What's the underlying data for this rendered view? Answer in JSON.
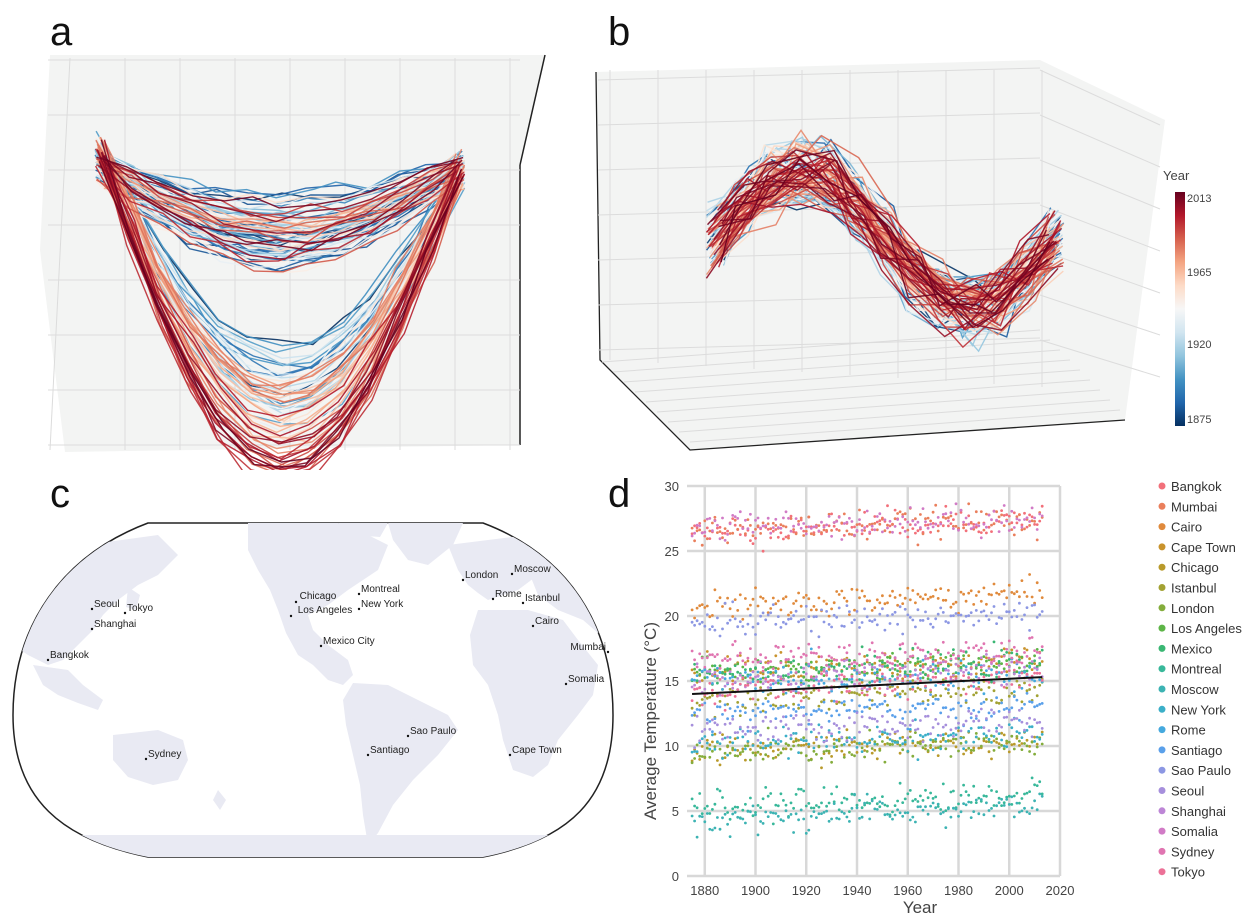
{
  "panels": {
    "a": {
      "letter": "a"
    },
    "b": {
      "letter": "b"
    },
    "c": {
      "letter": "c"
    },
    "d": {
      "letter": "d"
    }
  },
  "colorbar": {
    "title": "Year",
    "ticks": [
      "2013",
      "1965",
      "1920",
      "1875"
    ],
    "colors": [
      "#67001f",
      "#b2182b",
      "#d6604d",
      "#f4a582",
      "#fddbc7",
      "#f7f7f7",
      "#d1e5f0",
      "#92c5de",
      "#4393c3",
      "#2166ac",
      "#053061"
    ]
  },
  "map": {
    "land_color": "#e9eaf3",
    "ocean_color": "#ffffff",
    "cities": [
      {
        "name": "Seoul"
      },
      {
        "name": "Tokyo"
      },
      {
        "name": "Shanghai"
      },
      {
        "name": "Bangkok"
      },
      {
        "name": "Sydney"
      },
      {
        "name": "Chicago"
      },
      {
        "name": "Los Angeles"
      },
      {
        "name": "Montreal"
      },
      {
        "name": "New York"
      },
      {
        "name": "Mexico City"
      },
      {
        "name": "London"
      },
      {
        "name": "Moscow"
      },
      {
        "name": "Rome"
      },
      {
        "name": "Istanbul"
      },
      {
        "name": "Cairo"
      },
      {
        "name": "Mumbai"
      },
      {
        "name": "Somalia"
      },
      {
        "name": "Sao Paulo"
      },
      {
        "name": "Santiago"
      },
      {
        "name": "Cape Town"
      }
    ]
  },
  "chart_data": {
    "type": "scatter",
    "xlabel": "Year",
    "ylabel": "Average Temperature (°C)",
    "xlim": [
      1873,
      2020
    ],
    "ylim": [
      0,
      30
    ],
    "xticks": [
      1880,
      1900,
      1920,
      1940,
      1960,
      1980,
      2000,
      2020
    ],
    "yticks": [
      0,
      5,
      10,
      15,
      20,
      25,
      30
    ],
    "grid": true,
    "legend_position": "right",
    "x_range_of_series": [
      1875,
      2013
    ],
    "series": [
      {
        "name": "Bangkok",
        "color": "#f2707a",
        "mean": 27.0,
        "trend": 0.008
      },
      {
        "name": "Mumbai",
        "color": "#ea7f5c",
        "mean": 27.0,
        "trend": 0.007
      },
      {
        "name": "Cairo",
        "color": "#e08a3c",
        "mean": 21.2,
        "trend": 0.009
      },
      {
        "name": "Cape Town",
        "color": "#c9932d",
        "mean": 16.2,
        "trend": 0.004
      },
      {
        "name": "Chicago",
        "color": "#b99a2b",
        "mean": 10.0,
        "trend": 0.006
      },
      {
        "name": "Istanbul",
        "color": "#a3a233",
        "mean": 14.0,
        "trend": 0.005
      },
      {
        "name": "London",
        "color": "#84ad3c",
        "mean": 9.8,
        "trend": 0.006
      },
      {
        "name": "Los Angeles",
        "color": "#5db547",
        "mean": 16.0,
        "trend": 0.006
      },
      {
        "name": "Mexico",
        "color": "#3ab773",
        "mean": 16.0,
        "trend": 0.005
      },
      {
        "name": "Montreal",
        "color": "#38b89a",
        "mean": 5.8,
        "trend": 0.007
      },
      {
        "name": "Moscow",
        "color": "#3cb3b3",
        "mean": 4.8,
        "trend": 0.008
      },
      {
        "name": "New York",
        "color": "#3bafc8",
        "mean": 10.5,
        "trend": 0.006
      },
      {
        "name": "Rome",
        "color": "#45a9de",
        "mean": 15.2,
        "trend": 0.004
      },
      {
        "name": "Santiago",
        "color": "#5aa0ea",
        "mean": 12.8,
        "trend": 0.003
      },
      {
        "name": "Sao Paulo",
        "color": "#8c97e3",
        "mean": 19.8,
        "trend": 0.004
      },
      {
        "name": "Seoul",
        "color": "#a68fdc",
        "mean": 11.5,
        "trend": 0.007
      },
      {
        "name": "Shanghai",
        "color": "#bd86d6",
        "mean": 15.5,
        "trend": 0.008
      },
      {
        "name": "Somalia",
        "color": "#d17bc6",
        "mean": 27.2,
        "trend": 0.005
      },
      {
        "name": "Sydney",
        "color": "#e075b1",
        "mean": 17.0,
        "trend": 0.005
      },
      {
        "name": "Tokyo",
        "color": "#ec7197",
        "mean": 14.8,
        "trend": 0.01
      }
    ],
    "mean_trend_line": {
      "color": "#111111",
      "x": [
        1875,
        2013
      ],
      "y": [
        14.0,
        15.3
      ]
    }
  }
}
